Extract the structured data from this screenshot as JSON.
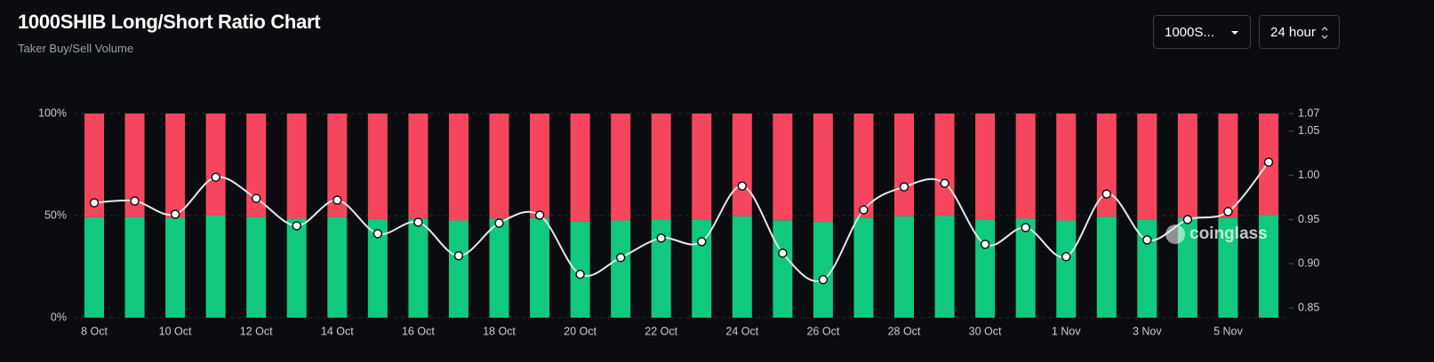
{
  "chart_data": {
    "type": "bar",
    "stacked": true,
    "title": "1000SHIB Long/Short Ratio Chart",
    "subtitle": "Taker Buy/Sell Volume",
    "categories": [
      "8 Oct",
      null,
      "10 Oct",
      null,
      "12 Oct",
      null,
      "14 Oct",
      null,
      "16 Oct",
      null,
      "18 Oct",
      null,
      "20 Oct",
      null,
      "22 Oct",
      null,
      "24 Oct",
      null,
      "26 Oct",
      null,
      "28 Oct",
      null,
      "30 Oct",
      null,
      "1 Nov",
      null,
      "3 Nov",
      null,
      "5 Nov",
      null
    ],
    "series": [
      {
        "color": "#10c97e",
        "values": [
          49.2,
          49.3,
          48.9,
          50.0,
          49.3,
          48.5,
          49.3,
          48.3,
          48.6,
          47.6,
          48.6,
          48.8,
          47.0,
          47.6,
          48.2,
          48.1,
          49.7,
          47.7,
          46.9,
          49.0,
          49.7,
          49.8,
          48.0,
          48.5,
          47.6,
          49.5,
          48.1,
          48.7,
          49.0,
          50.4
        ]
      },
      {
        "color": "#f6465d",
        "values": [
          50.8,
          50.7,
          51.1,
          50.0,
          50.7,
          51.5,
          50.7,
          51.7,
          51.4,
          52.4,
          51.4,
          51.2,
          53.0,
          52.4,
          51.8,
          51.9,
          50.3,
          52.3,
          53.1,
          51.0,
          50.3,
          50.2,
          52.0,
          51.5,
          52.4,
          50.5,
          51.9,
          51.3,
          51.0,
          49.6
        ]
      },
      {
        "type": "line",
        "axis": "y2",
        "color": "#e6e8eb",
        "values": [
          0.969,
          0.971,
          0.956,
          0.998,
          0.974,
          0.943,
          0.972,
          0.934,
          0.947,
          0.909,
          0.946,
          0.955,
          0.888,
          0.907,
          0.929,
          0.925,
          0.988,
          0.912,
          0.882,
          0.961,
          0.987,
          0.991,
          0.922,
          0.941,
          0.908,
          0.979,
          0.927,
          0.95,
          0.959,
          1.015
        ]
      }
    ],
    "ylim": [
      0,
      100
    ],
    "yticks": [
      {
        "value": 0,
        "label": "0%"
      },
      {
        "value": 50,
        "label": "50%"
      },
      {
        "value": 100,
        "label": "100%"
      }
    ],
    "y2lim": [
      0.839,
      1.07
    ],
    "y2ticks": [
      0.85,
      {
        "value": 0.9,
        "label": "0.90"
      },
      0.95,
      {
        "value": 1,
        "label": "1.00"
      },
      1.05,
      1.07
    ],
    "grid": true
  },
  "controls": {
    "symbol": "1000S...",
    "interval": "24 hour"
  },
  "watermark": "coinglass"
}
